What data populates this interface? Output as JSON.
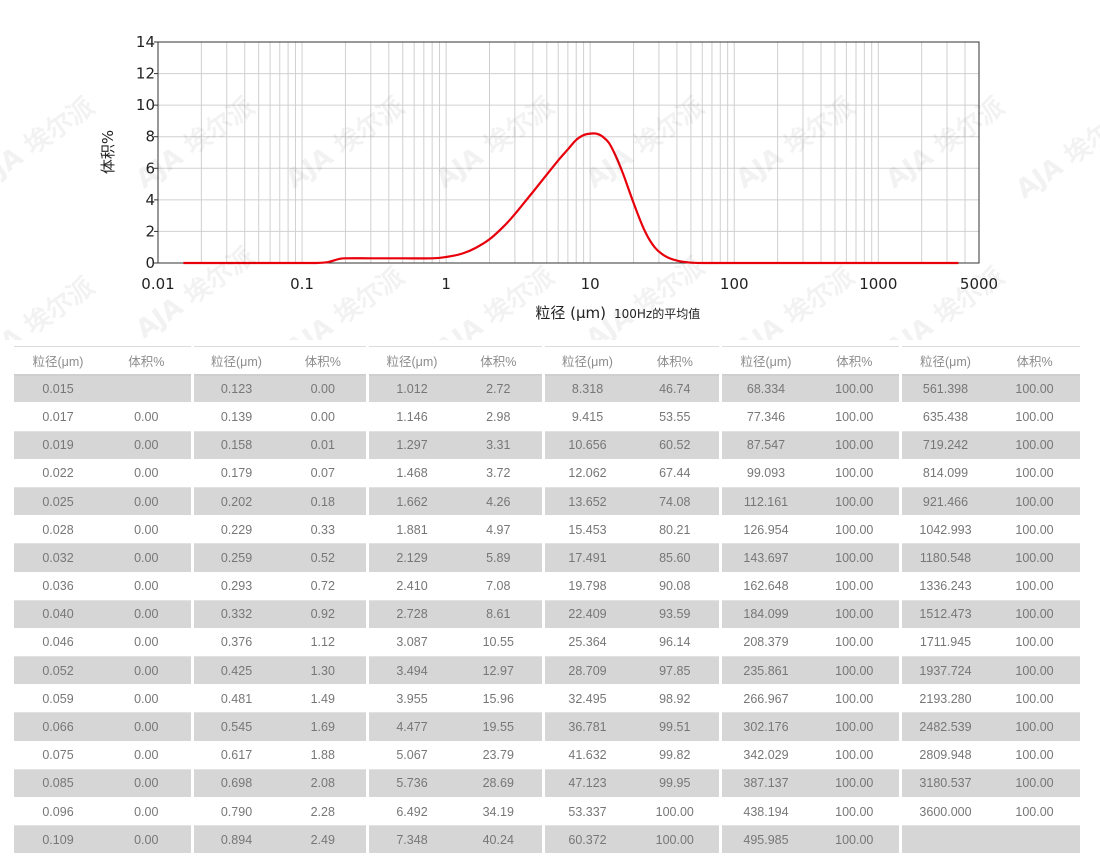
{
  "chart_data": {
    "type": "line",
    "ylabel": "体积%",
    "xlabel": "粒径 (μm)",
    "xlabel_suffix": "100Hz的平均值",
    "x_scale": "log",
    "xlim": [
      0.01,
      5000
    ],
    "ylim": [
      0,
      14
    ],
    "x_ticks": [
      "0.01",
      "0.1",
      "1",
      "10",
      "100",
      "1000",
      "5000"
    ],
    "x_tick_values": [
      0.01,
      0.1,
      1,
      10,
      100,
      1000,
      5000
    ],
    "y_ticks": [
      0,
      2,
      4,
      6,
      8,
      10,
      12,
      14
    ],
    "grid": true,
    "line_color": "#e8000b",
    "series": [
      {
        "x": [
          0.015,
          0.05,
          0.1,
          0.123,
          0.15,
          0.18,
          0.2,
          0.3,
          0.5,
          0.8,
          1.0,
          1.3,
          1.6,
          2.0,
          2.5,
          3.0,
          4.0,
          5.0,
          6.0,
          7.0,
          8.0,
          9.0,
          10.0,
          11.0,
          12.0,
          13.5,
          15.0,
          17.0,
          20.0,
          24.0,
          28.0,
          33.0,
          40.0,
          50.0,
          60.0,
          100.0,
          500.0,
          1000.0,
          3600.0
        ],
        "y": [
          0.0,
          0.0,
          0.0,
          0.0,
          0.05,
          0.25,
          0.3,
          0.3,
          0.3,
          0.3,
          0.38,
          0.6,
          0.95,
          1.5,
          2.3,
          3.1,
          4.5,
          5.6,
          6.5,
          7.2,
          7.8,
          8.1,
          8.2,
          8.2,
          8.05,
          7.6,
          6.8,
          5.6,
          3.8,
          2.0,
          1.0,
          0.45,
          0.15,
          0.02,
          0.0,
          0.0,
          0.0,
          0.0,
          0.0
        ]
      }
    ]
  },
  "watermark": "AJA 埃尔派",
  "table": {
    "headers": [
      "粒径(μm)",
      "体积%"
    ],
    "columns": [
      {
        "rows": [
          [
            "0.015",
            ""
          ],
          [
            "0.017",
            "0.00"
          ],
          [
            "0.019",
            "0.00"
          ],
          [
            "0.022",
            "0.00"
          ],
          [
            "0.025",
            "0.00"
          ],
          [
            "0.028",
            "0.00"
          ],
          [
            "0.032",
            "0.00"
          ],
          [
            "0.036",
            "0.00"
          ],
          [
            "0.040",
            "0.00"
          ],
          [
            "0.046",
            "0.00"
          ],
          [
            "0.052",
            "0.00"
          ],
          [
            "0.059",
            "0.00"
          ],
          [
            "0.066",
            "0.00"
          ],
          [
            "0.075",
            "0.00"
          ],
          [
            "0.085",
            "0.00"
          ],
          [
            "0.096",
            "0.00"
          ],
          [
            "0.109",
            "0.00"
          ]
        ]
      },
      {
        "rows": [
          [
            "0.123",
            "0.00"
          ],
          [
            "0.139",
            "0.00"
          ],
          [
            "0.158",
            "0.01"
          ],
          [
            "0.179",
            "0.07"
          ],
          [
            "0.202",
            "0.18"
          ],
          [
            "0.229",
            "0.33"
          ],
          [
            "0.259",
            "0.52"
          ],
          [
            "0.293",
            "0.72"
          ],
          [
            "0.332",
            "0.92"
          ],
          [
            "0.376",
            "1.12"
          ],
          [
            "0.425",
            "1.30"
          ],
          [
            "0.481",
            "1.49"
          ],
          [
            "0.545",
            "1.69"
          ],
          [
            "0.617",
            "1.88"
          ],
          [
            "0.698",
            "2.08"
          ],
          [
            "0.790",
            "2.28"
          ],
          [
            "0.894",
            "2.49"
          ]
        ]
      },
      {
        "rows": [
          [
            "1.012",
            "2.72"
          ],
          [
            "1.146",
            "2.98"
          ],
          [
            "1.297",
            "3.31"
          ],
          [
            "1.468",
            "3.72"
          ],
          [
            "1.662",
            "4.26"
          ],
          [
            "1.881",
            "4.97"
          ],
          [
            "2.129",
            "5.89"
          ],
          [
            "2.410",
            "7.08"
          ],
          [
            "2.728",
            "8.61"
          ],
          [
            "3.087",
            "10.55"
          ],
          [
            "3.494",
            "12.97"
          ],
          [
            "3.955",
            "15.96"
          ],
          [
            "4.477",
            "19.55"
          ],
          [
            "5.067",
            "23.79"
          ],
          [
            "5.736",
            "28.69"
          ],
          [
            "6.492",
            "34.19"
          ],
          [
            "7.348",
            "40.24"
          ]
        ]
      },
      {
        "rows": [
          [
            "8.318",
            "46.74"
          ],
          [
            "9.415",
            "53.55"
          ],
          [
            "10.656",
            "60.52"
          ],
          [
            "12.062",
            "67.44"
          ],
          [
            "13.652",
            "74.08"
          ],
          [
            "15.453",
            "80.21"
          ],
          [
            "17.491",
            "85.60"
          ],
          [
            "19.798",
            "90.08"
          ],
          [
            "22.409",
            "93.59"
          ],
          [
            "25.364",
            "96.14"
          ],
          [
            "28.709",
            "97.85"
          ],
          [
            "32.495",
            "98.92"
          ],
          [
            "36.781",
            "99.51"
          ],
          [
            "41.632",
            "99.82"
          ],
          [
            "47.123",
            "99.95"
          ],
          [
            "53.337",
            "100.00"
          ],
          [
            "60.372",
            "100.00"
          ]
        ]
      },
      {
        "rows": [
          [
            "68.334",
            "100.00"
          ],
          [
            "77.346",
            "100.00"
          ],
          [
            "87.547",
            "100.00"
          ],
          [
            "99.093",
            "100.00"
          ],
          [
            "112.161",
            "100.00"
          ],
          [
            "126.954",
            "100.00"
          ],
          [
            "143.697",
            "100.00"
          ],
          [
            "162.648",
            "100.00"
          ],
          [
            "184.099",
            "100.00"
          ],
          [
            "208.379",
            "100.00"
          ],
          [
            "235.861",
            "100.00"
          ],
          [
            "266.967",
            "100.00"
          ],
          [
            "302.176",
            "100.00"
          ],
          [
            "342.029",
            "100.00"
          ],
          [
            "387.137",
            "100.00"
          ],
          [
            "438.194",
            "100.00"
          ],
          [
            "495.985",
            "100.00"
          ]
        ]
      },
      {
        "rows": [
          [
            "561.398",
            "100.00"
          ],
          [
            "635.438",
            "100.00"
          ],
          [
            "719.242",
            "100.00"
          ],
          [
            "814.099",
            "100.00"
          ],
          [
            "921.466",
            "100.00"
          ],
          [
            "1042.993",
            "100.00"
          ],
          [
            "1180.548",
            "100.00"
          ],
          [
            "1336.243",
            "100.00"
          ],
          [
            "1512.473",
            "100.00"
          ],
          [
            "1711.945",
            "100.00"
          ],
          [
            "1937.724",
            "100.00"
          ],
          [
            "2193.280",
            "100.00"
          ],
          [
            "2482.539",
            "100.00"
          ],
          [
            "2809.948",
            "100.00"
          ],
          [
            "3180.537",
            "100.00"
          ],
          [
            "3600.000",
            "100.00"
          ],
          [
            "",
            ""
          ]
        ]
      }
    ]
  }
}
